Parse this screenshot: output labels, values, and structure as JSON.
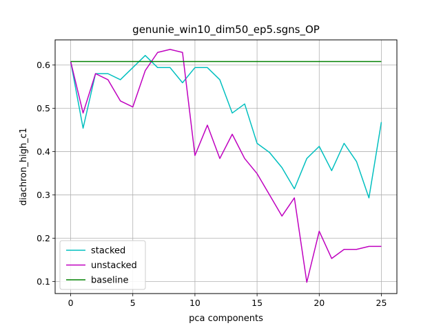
{
  "chart_data": {
    "type": "line",
    "title": "genunie_win10_dim50_ep5.sgns_OP",
    "xlabel": "pca components",
    "ylabel": "diachron_high_c1",
    "xlim": [
      -1.25,
      26.25
    ],
    "ylim": [
      0.072,
      0.658
    ],
    "xticks": [
      0,
      5,
      10,
      15,
      20,
      25
    ],
    "yticks": [
      0.1,
      0.2,
      0.3,
      0.4,
      0.5,
      0.6
    ],
    "ytick_labels": [
      "0.1",
      "0.2",
      "0.3",
      "0.4",
      "0.5",
      "0.6"
    ],
    "grid": true,
    "legend_position": "lower-left",
    "x": [
      0,
      1,
      2,
      3,
      4,
      5,
      6,
      7,
      8,
      9,
      10,
      11,
      12,
      13,
      14,
      15,
      16,
      17,
      18,
      19,
      20,
      21,
      22,
      23,
      24,
      25
    ],
    "series": [
      {
        "name": "stacked",
        "color": "#00bfbf",
        "values": [
          0.608,
          0.454,
          0.58,
          0.58,
          0.566,
          0.594,
          0.622,
          0.594,
          0.594,
          0.559,
          0.594,
          0.594,
          0.566,
          0.489,
          0.51,
          0.419,
          0.398,
          0.363,
          0.314,
          0.384,
          0.412,
          0.356,
          0.419,
          0.377,
          0.293,
          0.468
        ]
      },
      {
        "name": "unstacked",
        "color": "#bf00bf",
        "values": [
          0.608,
          0.489,
          0.58,
          0.566,
          0.517,
          0.503,
          0.587,
          0.629,
          0.636,
          0.629,
          0.391,
          0.461,
          0.384,
          0.44,
          0.384,
          0.349,
          0.3,
          0.251,
          0.293,
          0.098,
          0.216,
          0.153,
          0.174,
          0.174,
          0.181,
          0.181
        ]
      },
      {
        "name": "baseline",
        "color": "#008000",
        "values": [
          0.608,
          0.608,
          0.608,
          0.608,
          0.608,
          0.608,
          0.608,
          0.608,
          0.608,
          0.608,
          0.608,
          0.608,
          0.608,
          0.608,
          0.608,
          0.608,
          0.608,
          0.608,
          0.608,
          0.608,
          0.608,
          0.608,
          0.608,
          0.608,
          0.608,
          0.608
        ]
      }
    ]
  }
}
